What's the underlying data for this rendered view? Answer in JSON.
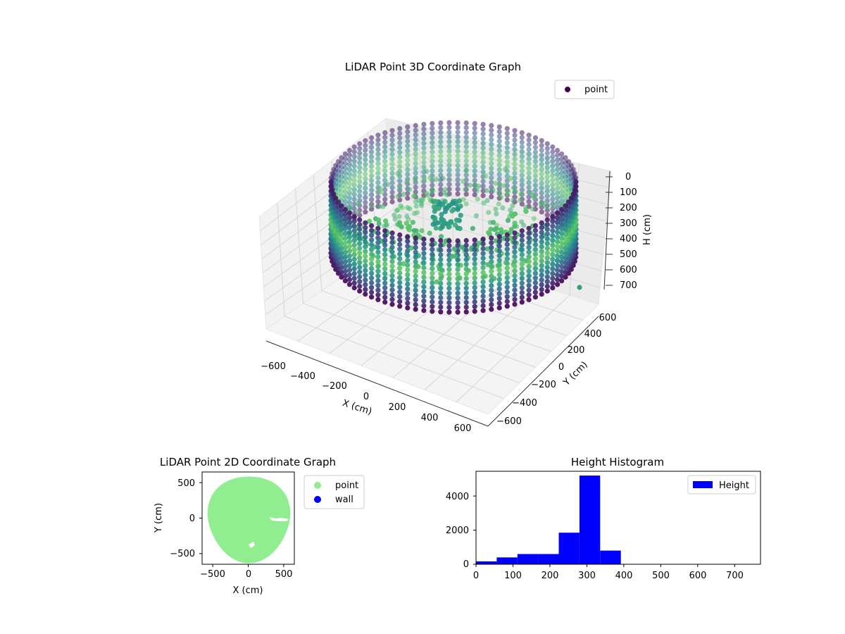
{
  "chart_data": [
    {
      "type": "scatter",
      "title": "LiDAR Point 3D Coordinate Graph",
      "xlabel": "X (cm)",
      "ylabel": "Y (cm)",
      "zlabel": "H (cm)",
      "xlim": [
        -700,
        700
      ],
      "ylim": [
        -700,
        700
      ],
      "zlim": [
        0,
        780
      ],
      "z_inverted": true,
      "xticks": [
        "−600",
        "−400",
        "−200",
        "0",
        "200",
        "400",
        "600"
      ],
      "yticks": [
        "−600",
        "−400",
        "−200",
        "0",
        "200",
        "400",
        "600"
      ],
      "zticks": [
        "0",
        "100",
        "200",
        "300",
        "400",
        "500",
        "600",
        "700"
      ],
      "grid": true,
      "legend": {
        "position": "upper-right",
        "entries": [
          {
            "label": "point",
            "color": "#440154"
          }
        ]
      },
      "colormap": "viridis",
      "colormap_stops": [
        "#440154",
        "#3b528b",
        "#21918c",
        "#5ec962"
      ],
      "point_cloud": {
        "shape": "cylindrical-ring",
        "radius_cm": 620,
        "h_range_cm": [
          20,
          700
        ]
      },
      "series": [
        {
          "name": "point"
        }
      ]
    },
    {
      "type": "scatter",
      "title": "LiDAR Point 2D Coordinate Graph",
      "xlabel": "X (cm)",
      "ylabel": "Y (cm)",
      "xlim": [
        -650,
        650
      ],
      "ylim": [
        -650,
        650
      ],
      "xticks": [
        "−500",
        "0",
        "500"
      ],
      "yticks": [
        "500",
        "0",
        "−500"
      ],
      "legend": {
        "position": "outside-right",
        "entries": [
          {
            "label": "point",
            "color": "#90ee90"
          },
          {
            "label": "wall",
            "color": "#0000ff"
          }
        ]
      },
      "series": [
        {
          "name": "point",
          "color": "#90ee90"
        },
        {
          "name": "wall",
          "color": "#0000ff"
        }
      ]
    },
    {
      "type": "bar",
      "title": "Height Histogram",
      "xlabel": "",
      "ylabel": "",
      "xlim": [
        0,
        770
      ],
      "ylim": [
        0,
        5450
      ],
      "xticks": [
        "0",
        "100",
        "200",
        "300",
        "400",
        "500",
        "600",
        "700"
      ],
      "yticks": [
        "0",
        "2000",
        "4000"
      ],
      "legend": {
        "position": "upper-right",
        "entries": [
          {
            "label": "Height",
            "color": "#0000ff"
          }
        ]
      },
      "bins": [
        {
          "x0": 0,
          "x1": 56,
          "count": 170
        },
        {
          "x0": 56,
          "x1": 112,
          "count": 400
        },
        {
          "x0": 112,
          "x1": 168,
          "count": 600
        },
        {
          "x0": 168,
          "x1": 224,
          "count": 600
        },
        {
          "x0": 224,
          "x1": 280,
          "count": 1850
        },
        {
          "x0": 280,
          "x1": 336,
          "count": 5200
        },
        {
          "x0": 336,
          "x1": 392,
          "count": 800
        },
        {
          "x0": 392,
          "x1": 448,
          "count": 0
        },
        {
          "x0": 448,
          "x1": 504,
          "count": 0
        },
        {
          "x0": 504,
          "x1": 560,
          "count": 0
        },
        {
          "x0": 560,
          "x1": 616,
          "count": 0
        },
        {
          "x0": 616,
          "x1": 672,
          "count": 0
        },
        {
          "x0": 672,
          "x1": 728,
          "count": 0
        },
        {
          "x0": 728,
          "x1": 784,
          "count": 0
        }
      ],
      "series": [
        {
          "name": "Height",
          "color": "#0000ff"
        }
      ]
    }
  ]
}
